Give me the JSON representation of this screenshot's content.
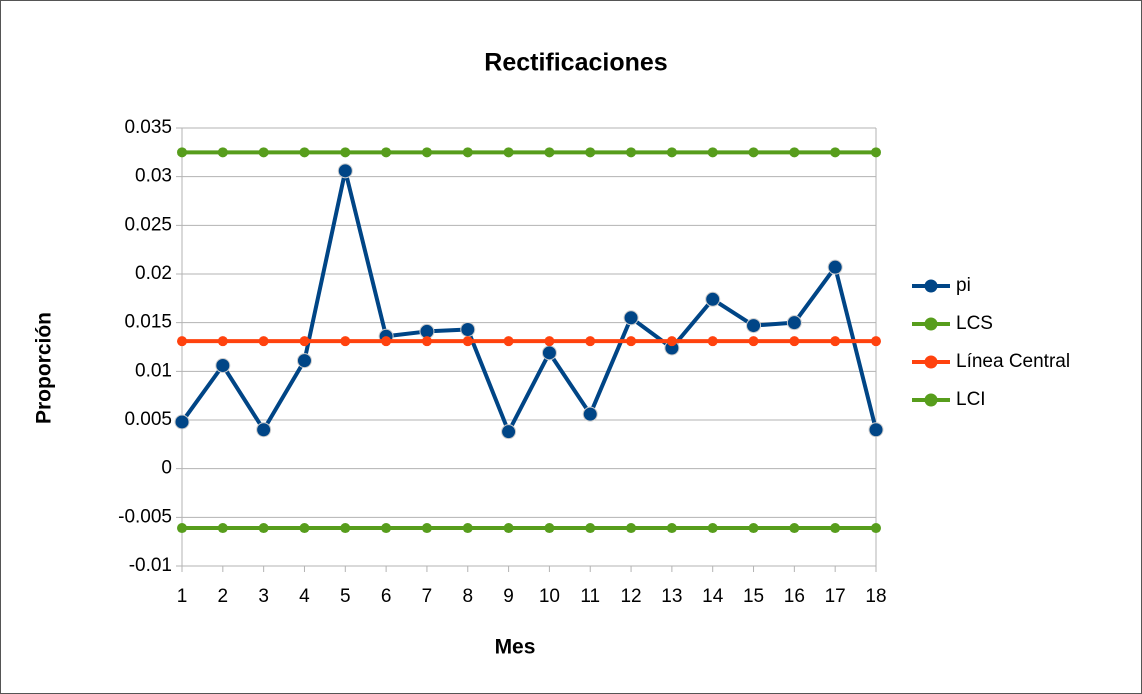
{
  "chart_data": {
    "type": "line",
    "title": "Rectificaciones",
    "x_label": "Mes",
    "y_label": "Proporción",
    "categories": [
      "1",
      "2",
      "3",
      "4",
      "5",
      "6",
      "7",
      "8",
      "9",
      "10",
      "11",
      "12",
      "13",
      "14",
      "15",
      "16",
      "17",
      "18"
    ],
    "series": [
      {
        "name": "pi",
        "color": "#004586",
        "values": [
          0.0048,
          0.0106,
          0.004,
          0.0111,
          0.0306,
          0.0136,
          0.0141,
          0.0143,
          0.0038,
          0.0119,
          0.0056,
          0.0155,
          0.0124,
          0.0174,
          0.0147,
          0.015,
          0.0207,
          0.004
        ]
      },
      {
        "name": "LCS",
        "color": "#579d1c",
        "values": [
          0.0325,
          0.0325,
          0.0325,
          0.0325,
          0.0325,
          0.0325,
          0.0325,
          0.0325,
          0.0325,
          0.0325,
          0.0325,
          0.0325,
          0.0325,
          0.0325,
          0.0325,
          0.0325,
          0.0325,
          0.0325
        ]
      },
      {
        "name": "Línea Central",
        "color": "#ff420e",
        "values": [
          0.0131,
          0.0131,
          0.0131,
          0.0131,
          0.0131,
          0.0131,
          0.0131,
          0.0131,
          0.0131,
          0.0131,
          0.0131,
          0.0131,
          0.0131,
          0.0131,
          0.0131,
          0.0131,
          0.0131,
          0.0131
        ]
      },
      {
        "name": "LCI",
        "color": "#579d1c",
        "values": [
          -0.0061,
          -0.0061,
          -0.0061,
          -0.0061,
          -0.0061,
          -0.0061,
          -0.0061,
          -0.0061,
          -0.0061,
          -0.0061,
          -0.0061,
          -0.0061,
          -0.0061,
          -0.0061,
          -0.0061,
          -0.0061,
          -0.0061,
          -0.0061
        ]
      }
    ],
    "ylim": [
      -0.01,
      0.035
    ],
    "yticks": [
      -0.01,
      -0.005,
      0,
      0.005,
      0.01,
      0.015,
      0.02,
      0.025,
      0.03,
      0.035
    ],
    "grid": true,
    "legend": "right"
  }
}
